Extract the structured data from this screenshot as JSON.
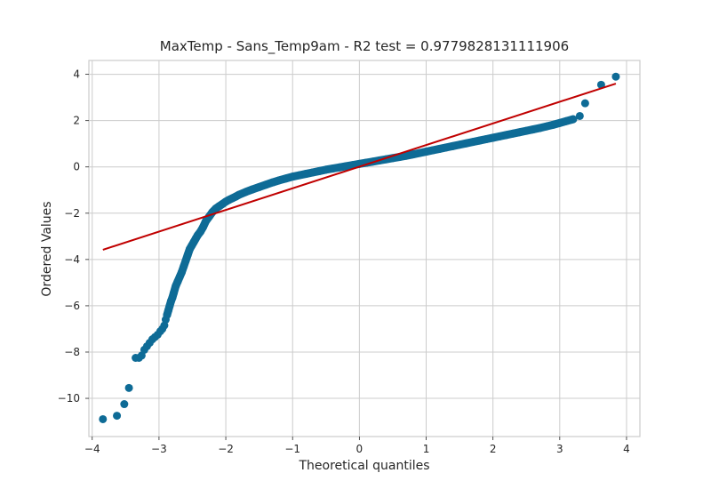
{
  "chart_data": {
    "type": "scatter",
    "title": "MaxTemp - Sans_Temp9am - R2 test = 0.9779828131111906",
    "xlabel": "Theoretical quantiles",
    "ylabel": "Ordered Values",
    "xlim": [
      -4.05,
      4.2
    ],
    "ylim": [
      -11.65,
      4.6
    ],
    "xticks": [
      -4,
      -3,
      -2,
      -1,
      0,
      1,
      2,
      3,
      4
    ],
    "xtick_labels": [
      "−4",
      "−3",
      "−2",
      "−1",
      "0",
      "1",
      "2",
      "3",
      "4"
    ],
    "yticks": [
      -10,
      -8,
      -6,
      -4,
      -2,
      0,
      2,
      4
    ],
    "ytick_labels": [
      "−10",
      "−8",
      "−6",
      "−4",
      "−2",
      "0",
      "2",
      "4"
    ],
    "grid": true,
    "colors": {
      "points": "#0e6b96",
      "line": "#c00000"
    },
    "series": [
      {
        "kind": "points",
        "x": [
          -3.84,
          -3.63,
          -3.52,
          -3.45,
          -3.35,
          -3.3,
          -3.26,
          -3.22,
          -3.18,
          -3.14,
          -3.1,
          -3.06,
          -3.02,
          -2.98,
          -2.95,
          -2.92,
          -2.9,
          -2.88,
          -2.86,
          -2.84,
          -2.82,
          -2.8,
          -2.78,
          -2.75,
          -2.72,
          -2.69,
          -2.66,
          -2.63,
          -2.6,
          -2.57,
          -2.54,
          -2.51,
          -2.48,
          -2.45,
          -2.42,
          -2.38,
          -2.34,
          -2.3,
          -2.25,
          -2.2,
          -2.15,
          -2.1,
          -2.05,
          -2.0,
          -1.95,
          -1.9,
          -1.85,
          -1.8,
          -1.7,
          -1.6,
          -1.5,
          -1.4,
          -1.3,
          -1.2,
          -1.1,
          -1.0,
          -0.9,
          -0.8,
          -0.7,
          -0.6,
          -0.5,
          -0.4,
          -0.3,
          -0.2,
          -0.1,
          0.0,
          0.1,
          0.2,
          0.3,
          0.4,
          0.5,
          0.6,
          0.7,
          0.8,
          0.9,
          1.0,
          1.1,
          1.2,
          1.3,
          1.4,
          1.5,
          1.6,
          1.7,
          1.8,
          1.9,
          2.0,
          2.1,
          2.2,
          2.3,
          2.4,
          2.5,
          2.6,
          2.7,
          2.8,
          2.9,
          3.0,
          3.1,
          3.2,
          3.3,
          3.38,
          3.62,
          3.84
        ],
        "y": [
          -10.9,
          -10.75,
          -10.25,
          -9.55,
          -8.25,
          -8.25,
          -8.15,
          -7.9,
          -7.75,
          -7.6,
          -7.45,
          -7.35,
          -7.25,
          -7.1,
          -7.0,
          -6.85,
          -6.6,
          -6.4,
          -6.2,
          -6.0,
          -5.8,
          -5.65,
          -5.45,
          -5.15,
          -4.95,
          -4.75,
          -4.55,
          -4.3,
          -4.05,
          -3.8,
          -3.55,
          -3.4,
          -3.25,
          -3.1,
          -2.95,
          -2.8,
          -2.6,
          -2.35,
          -2.15,
          -1.95,
          -1.8,
          -1.7,
          -1.6,
          -1.5,
          -1.42,
          -1.35,
          -1.28,
          -1.2,
          -1.08,
          -0.97,
          -0.87,
          -0.77,
          -0.67,
          -0.58,
          -0.5,
          -0.42,
          -0.36,
          -0.3,
          -0.24,
          -0.18,
          -0.12,
          -0.07,
          -0.02,
          0.03,
          0.08,
          0.13,
          0.18,
          0.23,
          0.28,
          0.33,
          0.38,
          0.43,
          0.48,
          0.54,
          0.6,
          0.66,
          0.72,
          0.78,
          0.84,
          0.9,
          0.96,
          1.02,
          1.08,
          1.14,
          1.2,
          1.26,
          1.32,
          1.38,
          1.44,
          1.5,
          1.56,
          1.62,
          1.68,
          1.75,
          1.82,
          1.9,
          1.98,
          2.06,
          2.2,
          2.75,
          3.55,
          3.9
        ]
      },
      {
        "kind": "line",
        "x": [
          -3.84,
          3.84
        ],
        "y": [
          -3.58,
          3.6
        ]
      }
    ]
  }
}
